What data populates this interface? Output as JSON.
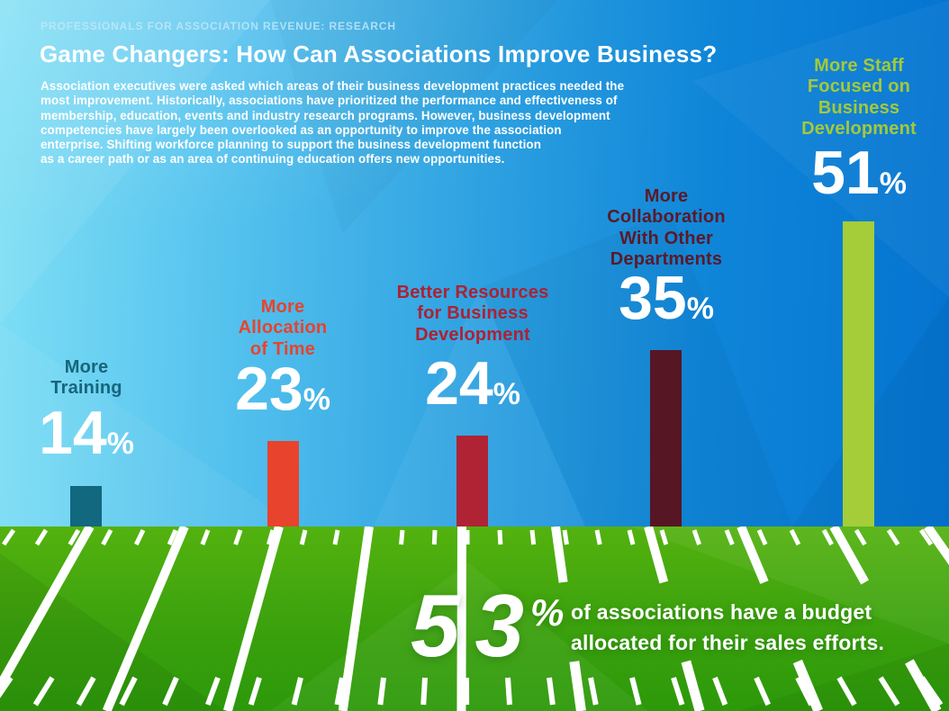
{
  "header": {
    "eyebrow": "PROFESSIONALS FOR ASSOCIATION REVENUE: RESEARCH",
    "title": "Game Changers: How Can Associations Improve Business?",
    "description_lines": [
      "Association executives were asked which areas of their business development practices needed the",
      "most improvement. Historically, associations have prioritized the performance and effectiveness of",
      "membership, education, events and industry research programs. However, business development",
      "competencies have largely been overlooked as an opportunity to improve the association",
      "enterprise. Shifting workforce planning to support the business development function",
      "as a career path or as an area of continuing education offers new opportunities."
    ]
  },
  "chart_data": {
    "type": "bar",
    "title": "Game Changers: How Can Associations Improve Business?",
    "unit": "%",
    "categories": [
      "More Training",
      "More Allocation of Time",
      "Better Resources for Business Development",
      "More Collaboration With Other Departments",
      "More Staff Focused on Business Development"
    ],
    "values": [
      14,
      23,
      24,
      35,
      51
    ],
    "bars": [
      {
        "label_lines": [
          "More",
          "Training"
        ],
        "value": "14",
        "suffix": "%",
        "bar_color": "#11687f",
        "label_color": "#17657c"
      },
      {
        "label_lines": [
          "More",
          "Allocation",
          "of Time"
        ],
        "value": "23",
        "suffix": "%",
        "bar_color": "#e8432d",
        "label_color": "#e8432d"
      },
      {
        "label_lines": [
          "Better Resources",
          "for Business",
          "Development"
        ],
        "value": "24",
        "suffix": "%",
        "bar_color": "#b02334",
        "label_color": "#ae2133"
      },
      {
        "label_lines": [
          "More",
          "Collaboration",
          "With Other",
          "Departments"
        ],
        "value": "35",
        "suffix": "%",
        "bar_color": "#571623",
        "label_color": "#5a1a28"
      },
      {
        "label_lines": [
          "More Staff",
          "Focused on",
          "Business",
          "Development"
        ],
        "value": "51",
        "suffix": "%",
        "bar_color": "#a5cd39",
        "label_color": "#a4c939"
      }
    ],
    "callout": {
      "value": 53,
      "digits": [
        "5",
        "3"
      ],
      "suffix": "%",
      "text_lines": [
        "of associations have a budget",
        "allocated for their sales efforts."
      ]
    },
    "layout_hints": {
      "axes": "none",
      "grid": "off",
      "legend": "none",
      "background": "football field"
    }
  },
  "colors": {
    "background_light": "#7edff5",
    "background_dark": "#0473d0",
    "field_green_light": "#53b20f",
    "field_green_dark": "#2c990a",
    "field_line_white": "#ffffff",
    "text_white": "#ffffff",
    "eyebrow_blue": "#bfe9f9"
  }
}
